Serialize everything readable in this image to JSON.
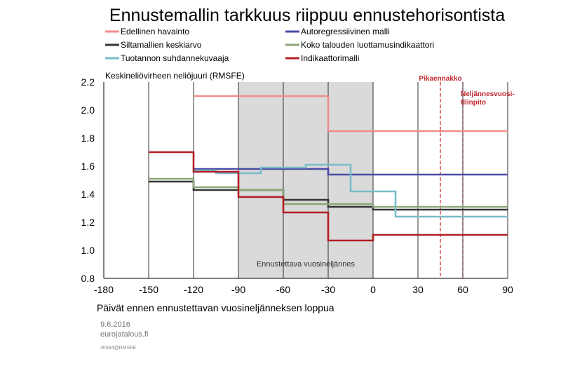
{
  "chart_data": {
    "type": "line",
    "title": "Ennustemallin tarkkuus riippuu ennustehorisontista",
    "ylabel": "Keskineliövirheen neliöjuuri (RMSFE)",
    "xlabel": "Päivät ennen ennustettavan vuosineljänneksen loppua",
    "xlim": [
      -180,
      90
    ],
    "ylim": [
      0.8,
      2.2
    ],
    "x_ticks": [
      -180,
      -150,
      -120,
      -90,
      -60,
      -30,
      0,
      30,
      60,
      90
    ],
    "x_tick_labels": [
      "-180",
      "-150",
      "-120",
      "-90",
      "-60",
      "-30",
      "0",
      "30",
      "60",
      "90"
    ],
    "y_ticks": [
      0.8,
      1.0,
      1.2,
      1.4,
      1.6,
      1.8,
      2.0,
      2.2
    ],
    "y_tick_labels": [
      "0.8",
      "1.0",
      "1.2",
      "1.4",
      "1.6",
      "1.8",
      "2.0",
      "2.2"
    ],
    "grid": "vertical",
    "legend_position": "top",
    "shaded_region": {
      "x_start": -90,
      "x_end": 0,
      "label": "Ennustettava vuosineljännes"
    },
    "markers": [
      {
        "x": 45,
        "label": "Pikaennakko",
        "style": "dashed"
      },
      {
        "x": 60,
        "label_line1": "Neljännesvuosi-",
        "label_line2": "tilinpito",
        "style": "dashed"
      }
    ],
    "series": [
      {
        "name": "Edellinen havainto",
        "color": "#f08c8c",
        "points": [
          [
            -120,
            2.1
          ],
          [
            -30,
            2.1
          ],
          [
            -30,
            1.85
          ],
          [
            90,
            1.85
          ]
        ]
      },
      {
        "name": "Autoregressiivinen malli",
        "color": "#4b4ba6",
        "points": [
          [
            -120,
            1.58
          ],
          [
            -30,
            1.58
          ],
          [
            -30,
            1.54
          ],
          [
            90,
            1.54
          ]
        ]
      },
      {
        "name": "Siltamallien keskiarvo",
        "color": "#333333",
        "points": [
          [
            -150,
            1.49
          ],
          [
            -120,
            1.49
          ],
          [
            -120,
            1.43
          ],
          [
            -60,
            1.43
          ],
          [
            -60,
            1.36
          ],
          [
            -30,
            1.36
          ],
          [
            -30,
            1.31
          ],
          [
            0,
            1.31
          ],
          [
            0,
            1.29
          ],
          [
            90,
            1.29
          ]
        ]
      },
      {
        "name": "Koko talouden luottamusindikaattori",
        "color": "#8aa67a",
        "points": [
          [
            -150,
            1.51
          ],
          [
            -120,
            1.51
          ],
          [
            -120,
            1.45
          ],
          [
            -90,
            1.45
          ],
          [
            -90,
            1.43
          ],
          [
            -60,
            1.43
          ],
          [
            -60,
            1.33
          ],
          [
            -30,
            1.33
          ],
          [
            -30,
            1.33
          ],
          [
            0,
            1.33
          ],
          [
            0,
            1.31
          ],
          [
            90,
            1.31
          ]
        ]
      },
      {
        "name": "Tuotannon suhdannekuvaaja",
        "color": "#79bcc8",
        "points": [
          [
            -120,
            1.57
          ],
          [
            -105,
            1.57
          ],
          [
            -105,
            1.55
          ],
          [
            -75,
            1.55
          ],
          [
            -75,
            1.59
          ],
          [
            -45,
            1.59
          ],
          [
            -45,
            1.61
          ],
          [
            -15,
            1.61
          ],
          [
            -15,
            1.42
          ],
          [
            15,
            1.42
          ],
          [
            15,
            1.24
          ],
          [
            90,
            1.24
          ]
        ]
      },
      {
        "name": "Indikaattorimalli",
        "color": "#b01f24",
        "points": [
          [
            -150,
            1.7
          ],
          [
            -120,
            1.7
          ],
          [
            -120,
            1.56
          ],
          [
            -90,
            1.56
          ],
          [
            -90,
            1.38
          ],
          [
            -60,
            1.38
          ],
          [
            -60,
            1.27
          ],
          [
            -30,
            1.27
          ],
          [
            -30,
            1.07
          ],
          [
            0,
            1.07
          ],
          [
            0,
            1.11
          ],
          [
            90,
            1.11
          ]
        ]
      }
    ]
  },
  "footer": {
    "date": "9.6.2016",
    "source": "eurojatalous.fi",
    "code": "30384@RMSFE"
  }
}
